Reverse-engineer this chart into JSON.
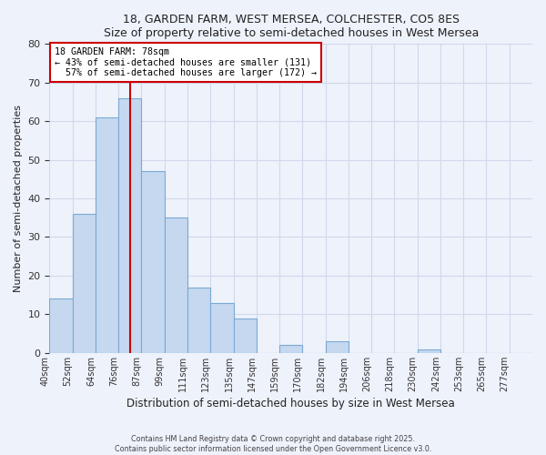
{
  "title": "18, GARDEN FARM, WEST MERSEA, COLCHESTER, CO5 8ES",
  "subtitle": "Size of property relative to semi-detached houses in West Mersea",
  "xlabel": "Distribution of semi-detached houses by size in West Mersea",
  "ylabel": "Number of semi-detached properties",
  "bin_labels": [
    "40sqm",
    "52sqm",
    "64sqm",
    "76sqm",
    "87sqm",
    "99sqm",
    "111sqm",
    "123sqm",
    "135sqm",
    "147sqm",
    "159sqm",
    "170sqm",
    "182sqm",
    "194sqm",
    "206sqm",
    "218sqm",
    "230sqm",
    "242sqm",
    "253sqm",
    "265sqm",
    "277sqm"
  ],
  "bar_heights": [
    14,
    36,
    61,
    66,
    47,
    35,
    17,
    13,
    9,
    0,
    2,
    0,
    3,
    0,
    0,
    0,
    1,
    0,
    0,
    0,
    0
  ],
  "bar_color": "#c5d8f0",
  "bar_edge_color": "#7aaad4",
  "property_line_x": 3.5,
  "annotation_text": "18 GARDEN FARM: 78sqm\n← 43% of semi-detached houses are smaller (131)\n  57% of semi-detached houses are larger (172) →",
  "annotation_box_color": "#ffffff",
  "annotation_box_edge": "#cc0000",
  "vline_color": "#cc0000",
  "ylim": [
    0,
    80
  ],
  "background_color": "#eef2fb",
  "grid_color": "#d0d8ea",
  "footer1": "Contains HM Land Registry data © Crown copyright and database right 2025.",
  "footer2": "Contains public sector information licensed under the Open Government Licence v3.0."
}
